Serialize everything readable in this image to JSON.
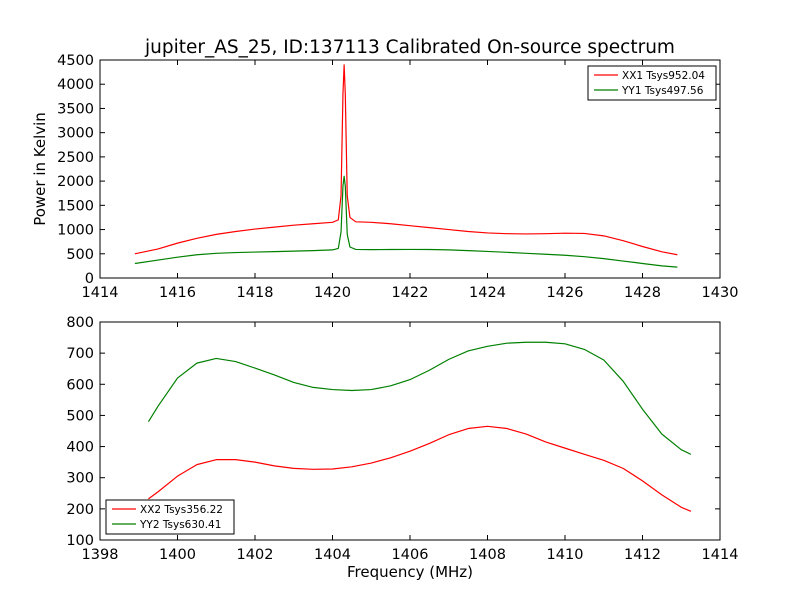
{
  "figure": {
    "title": "jupiter_AS_25, ID:137113 Calibrated On-source spectrum"
  },
  "chart_data": [
    {
      "type": "line",
      "title": "jupiter_AS_25, ID:137113 Calibrated On-source spectrum",
      "xlabel": "",
      "ylabel": "Power in Kelvin",
      "xlim": [
        1414,
        1430
      ],
      "ylim": [
        0,
        4500
      ],
      "xticks": [
        1414,
        1416,
        1418,
        1420,
        1422,
        1424,
        1426,
        1428,
        1430
      ],
      "yticks": [
        0,
        500,
        1000,
        1500,
        2000,
        2500,
        3000,
        3500,
        4000,
        4500
      ],
      "legend_position": "top-right",
      "grid": false,
      "series": [
        {
          "name": "XX1 Tsys952.04",
          "color": "#ff0000",
          "x": [
            1414.9,
            1415.5,
            1416.0,
            1416.5,
            1417.0,
            1417.5,
            1418.0,
            1418.5,
            1419.0,
            1419.5,
            1420.0,
            1420.15,
            1420.22,
            1420.27,
            1420.3,
            1420.33,
            1420.38,
            1420.45,
            1420.6,
            1421.0,
            1421.5,
            1422.0,
            1422.5,
            1423.0,
            1423.5,
            1424.0,
            1424.5,
            1425.0,
            1425.5,
            1426.0,
            1426.5,
            1427.0,
            1427.5,
            1428.0,
            1428.5,
            1428.9
          ],
          "y": [
            500,
            600,
            720,
            820,
            900,
            960,
            1010,
            1050,
            1090,
            1120,
            1150,
            1200,
            1700,
            3800,
            4400,
            3800,
            1700,
            1250,
            1160,
            1150,
            1120,
            1080,
            1040,
            1000,
            960,
            930,
            915,
            910,
            915,
            925,
            920,
            870,
            770,
            650,
            540,
            480
          ]
        },
        {
          "name": "YY1 Tsys497.56",
          "color": "#008000",
          "x": [
            1414.9,
            1415.5,
            1416.0,
            1416.5,
            1417.0,
            1417.5,
            1418.0,
            1418.5,
            1419.0,
            1419.5,
            1420.0,
            1420.15,
            1420.22,
            1420.27,
            1420.3,
            1420.33,
            1420.38,
            1420.45,
            1420.6,
            1421.0,
            1421.5,
            1422.0,
            1422.5,
            1423.0,
            1423.5,
            1424.0,
            1424.5,
            1425.0,
            1425.5,
            1426.0,
            1426.5,
            1427.0,
            1427.5,
            1428.0,
            1428.5,
            1428.9
          ],
          "y": [
            300,
            370,
            430,
            480,
            510,
            525,
            535,
            545,
            555,
            565,
            580,
            610,
            950,
            1900,
            2100,
            1900,
            900,
            640,
            590,
            585,
            588,
            590,
            588,
            580,
            565,
            548,
            530,
            510,
            490,
            470,
            440,
            400,
            350,
            300,
            250,
            225
          ]
        }
      ]
    },
    {
      "type": "line",
      "title": "",
      "xlabel": "Frequency (MHz)",
      "ylabel": "",
      "xlim": [
        1398,
        1414
      ],
      "ylim": [
        100,
        800
      ],
      "xticks": [
        1398,
        1400,
        1402,
        1404,
        1406,
        1408,
        1410,
        1412,
        1414
      ],
      "yticks": [
        100,
        200,
        300,
        400,
        500,
        600,
        700,
        800
      ],
      "legend_position": "bottom-left",
      "grid": false,
      "series": [
        {
          "name": "XX2 Tsys356.22",
          "color": "#ff0000",
          "x": [
            1399.25,
            1399.5,
            1400.0,
            1400.5,
            1401.0,
            1401.5,
            1402.0,
            1402.5,
            1403.0,
            1403.5,
            1404.0,
            1404.5,
            1405.0,
            1405.5,
            1406.0,
            1406.5,
            1407.0,
            1407.5,
            1408.0,
            1408.5,
            1409.0,
            1409.5,
            1410.0,
            1410.5,
            1411.0,
            1411.5,
            1412.0,
            1412.5,
            1413.0,
            1413.25
          ],
          "y": [
            232,
            255,
            305,
            342,
            358,
            358,
            350,
            338,
            330,
            327,
            328,
            335,
            347,
            364,
            385,
            410,
            438,
            458,
            465,
            458,
            440,
            415,
            395,
            375,
            356,
            330,
            290,
            245,
            205,
            192
          ]
        },
        {
          "name": "YY2 Tsys630.41",
          "color": "#008000",
          "x": [
            1399.25,
            1399.5,
            1400.0,
            1400.5,
            1401.0,
            1401.5,
            1402.0,
            1402.5,
            1403.0,
            1403.5,
            1404.0,
            1404.5,
            1405.0,
            1405.5,
            1406.0,
            1406.5,
            1407.0,
            1407.5,
            1408.0,
            1408.5,
            1409.0,
            1409.5,
            1410.0,
            1410.5,
            1411.0,
            1411.5,
            1412.0,
            1412.5,
            1413.0,
            1413.25
          ],
          "y": [
            480,
            530,
            620,
            668,
            683,
            673,
            652,
            630,
            606,
            590,
            583,
            580,
            583,
            595,
            615,
            645,
            680,
            707,
            722,
            732,
            735,
            735,
            730,
            712,
            678,
            610,
            520,
            440,
            390,
            375
          ]
        }
      ]
    }
  ]
}
